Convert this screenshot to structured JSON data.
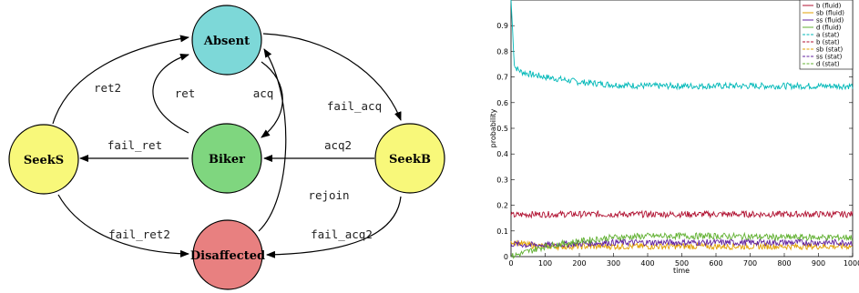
{
  "diagram": {
    "nodes": [
      {
        "id": "absent",
        "label": "Absent",
        "color": "#7dd8d8"
      },
      {
        "id": "biker",
        "label": "Biker",
        "color": "#7fd67f"
      },
      {
        "id": "seeks",
        "label": "SeekS",
        "color": "#f8f87a"
      },
      {
        "id": "seekb",
        "label": "SeekB",
        "color": "#f8f87a"
      },
      {
        "id": "disaffected",
        "label": "Disaffected",
        "color": "#e88080"
      }
    ],
    "edges": [
      {
        "id": "ret",
        "label": "ret"
      },
      {
        "id": "acq",
        "label": "acq"
      },
      {
        "id": "ret2",
        "label": "ret2"
      },
      {
        "id": "fail-acq",
        "label": "fail_acq"
      },
      {
        "id": "fail-ret",
        "label": "fail_ret"
      },
      {
        "id": "acq2",
        "label": "acq2"
      },
      {
        "id": "rejoin",
        "label": "rejoin"
      },
      {
        "id": "fail-ret2",
        "label": "fail_ret2"
      },
      {
        "id": "fail-acq2",
        "label": "fail_acq2"
      }
    ]
  },
  "chart_data": {
    "type": "line",
    "xlabel": "time",
    "ylabel": "probability",
    "xlim": [
      0,
      1000
    ],
    "ylim": [
      0,
      1.0
    ],
    "x_ticks": [
      0,
      100,
      200,
      300,
      400,
      500,
      600,
      700,
      800,
      900,
      1000
    ],
    "y_ticks": [
      0,
      0.1,
      0.2,
      0.3,
      0.4,
      0.5,
      0.6,
      0.7,
      0.8,
      0.9
    ],
    "legend_position": "top-right",
    "legend": [
      "b (fluid)",
      "sb (fluid)",
      "ss (fluid)",
      "d (fluid)",
      "a (stat)",
      "b (stat)",
      "sb (stat)",
      "ss (stat)",
      "d (stat)"
    ],
    "series": [
      {
        "name": "a (stat)",
        "color": "#00b8b8",
        "x": [
          0,
          10,
          30,
          60,
          100,
          150,
          200,
          300,
          400,
          500,
          600,
          700,
          800,
          900,
          1000
        ],
        "y": [
          1.0,
          0.74,
          0.72,
          0.71,
          0.7,
          0.69,
          0.68,
          0.67,
          0.665,
          0.665,
          0.665,
          0.665,
          0.665,
          0.665,
          0.665
        ]
      },
      {
        "name": "b (stat)",
        "color": "#b01030",
        "x": [
          0,
          50,
          100,
          200,
          300,
          400,
          500,
          600,
          700,
          800,
          900,
          1000
        ],
        "y": [
          0.16,
          0.165,
          0.165,
          0.165,
          0.165,
          0.165,
          0.165,
          0.165,
          0.165,
          0.165,
          0.165,
          0.165
        ]
      },
      {
        "name": "sb (stat)",
        "color": "#e0a000",
        "x": [
          0,
          50,
          100,
          200,
          300,
          400,
          500,
          600,
          700,
          800,
          900,
          1000
        ],
        "y": [
          0.06,
          0.045,
          0.04,
          0.04,
          0.04,
          0.04,
          0.04,
          0.04,
          0.04,
          0.04,
          0.04,
          0.04
        ]
      },
      {
        "name": "ss (stat)",
        "color": "#6020a0",
        "x": [
          0,
          50,
          100,
          200,
          300,
          400,
          500,
          600,
          700,
          800,
          900,
          1000
        ],
        "y": [
          0.05,
          0.045,
          0.045,
          0.05,
          0.055,
          0.055,
          0.055,
          0.055,
          0.055,
          0.055,
          0.055,
          0.055
        ]
      },
      {
        "name": "d (stat)",
        "color": "#60b030",
        "x": [
          0,
          50,
          100,
          200,
          300,
          400,
          500,
          600,
          700,
          800,
          900,
          1000
        ],
        "y": [
          0.0,
          0.02,
          0.04,
          0.06,
          0.075,
          0.08,
          0.08,
          0.08,
          0.078,
          0.075,
          0.075,
          0.075
        ]
      }
    ]
  }
}
